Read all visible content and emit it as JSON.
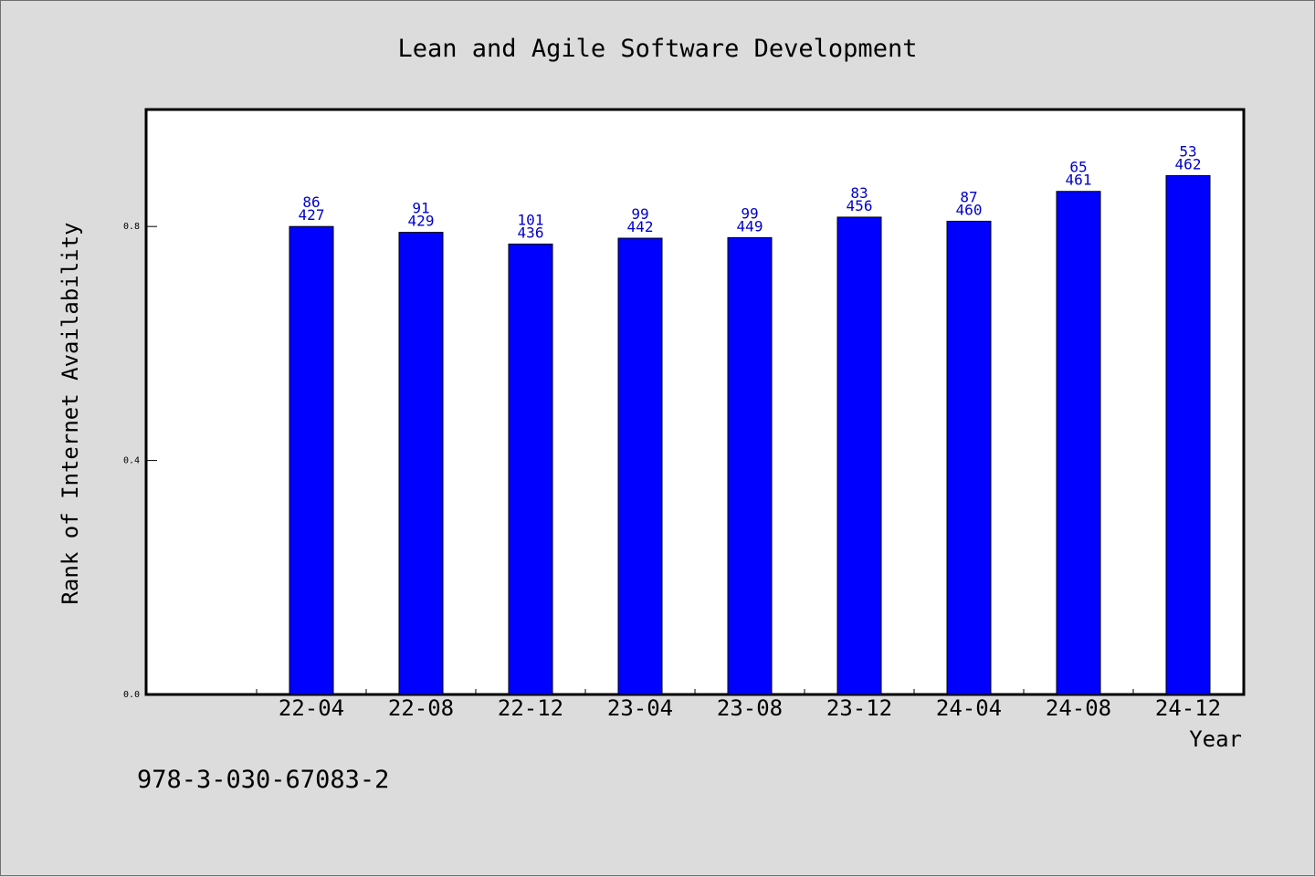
{
  "chart_data": {
    "type": "bar",
    "title": "Lean and Agile Software Development",
    "xlabel": "Year",
    "ylabel": "Rank of Internet Availability",
    "categories": [
      "22-04",
      "22-08",
      "22-12",
      "23-04",
      "23-08",
      "23-12",
      "24-04",
      "24-08",
      "24-12"
    ],
    "values": [
      0.8,
      0.79,
      0.77,
      0.78,
      0.781,
      0.816,
      0.809,
      0.86,
      0.887
    ],
    "bar_labels_top": [
      "86",
      "91",
      "101",
      "99",
      "99",
      "83",
      "87",
      "65",
      "53"
    ],
    "bar_labels_bottom": [
      "427",
      "429",
      "436",
      "442",
      "449",
      "456",
      "460",
      "461",
      "462"
    ],
    "ylim": [
      0,
      1.0
    ],
    "yticks": [
      0.0,
      0.4,
      0.8
    ],
    "ytick_labels": [
      "0.0",
      "0.4",
      "0.8"
    ],
    "grid": false,
    "bar_color": "#0000ff",
    "label_color": "#0000cc"
  },
  "footer": {
    "isbn": "978-3-030-67083-2"
  }
}
